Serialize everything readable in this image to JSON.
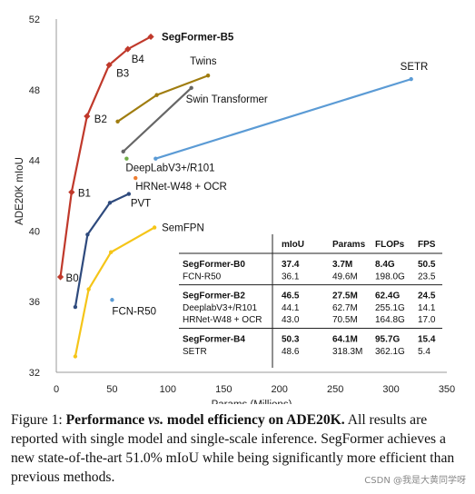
{
  "chart_data": {
    "type": "line",
    "xlabel": "Params (Millions)",
    "ylabel": "ADE20K mIoU",
    "xlim": [
      0,
      350
    ],
    "ylim": [
      32,
      52
    ],
    "xticks": [
      "0",
      "50",
      "100",
      "150",
      "200",
      "250",
      "300",
      "350"
    ],
    "yticks": [
      "32",
      "36",
      "40",
      "44",
      "48",
      "52"
    ],
    "grid": false,
    "series": [
      {
        "name": "SegFormer-B5",
        "color": "#c0392b",
        "marker": "diamond",
        "points": [
          {
            "x": 3.7,
            "y": 37.4,
            "label": "B0"
          },
          {
            "x": 13.7,
            "y": 42.2,
            "label": "B1"
          },
          {
            "x": 27.5,
            "y": 46.5,
            "label": "B2"
          },
          {
            "x": 47.3,
            "y": 49.4,
            "label": "B3"
          },
          {
            "x": 64.1,
            "y": 50.3,
            "label": "B4"
          },
          {
            "x": 84.7,
            "y": 51.0,
            "label": ""
          }
        ]
      },
      {
        "name": "Twins",
        "color": "#a07d10",
        "marker": "dot",
        "points": [
          {
            "x": 55,
            "y": 46.2
          },
          {
            "x": 90,
            "y": 47.7
          },
          {
            "x": 136,
            "y": 48.8
          }
        ]
      },
      {
        "name": "Swin Transformer",
        "color": "#666666",
        "marker": "dot",
        "points": [
          {
            "x": 60,
            "y": 44.5
          },
          {
            "x": 121,
            "y": 48.1
          }
        ]
      },
      {
        "name": "SETR",
        "color": "#5b9bd5",
        "marker": "dot",
        "points": [
          {
            "x": 89,
            "y": 44.1
          },
          {
            "x": 318,
            "y": 48.6
          }
        ]
      },
      {
        "name": "DeepLabV3+/R101",
        "color": "#70ad47",
        "marker": "dot",
        "points": [
          {
            "x": 63,
            "y": 44.1
          }
        ]
      },
      {
        "name": "HRNet-W48 + OCR",
        "color": "#ed7d31",
        "marker": "dot",
        "points": [
          {
            "x": 71,
            "y": 43.0
          }
        ]
      },
      {
        "name": "PVT",
        "color": "#2e4a7d",
        "marker": "dot",
        "points": [
          {
            "x": 17,
            "y": 35.7
          },
          {
            "x": 28,
            "y": 39.8
          },
          {
            "x": 48,
            "y": 41.6
          },
          {
            "x": 65,
            "y": 42.1
          }
        ]
      },
      {
        "name": "SemFPN",
        "color": "#f5c518",
        "marker": "dot",
        "points": [
          {
            "x": 17,
            "y": 32.9
          },
          {
            "x": 29,
            "y": 36.7
          },
          {
            "x": 49,
            "y": 38.8
          },
          {
            "x": 88,
            "y": 40.2
          }
        ]
      },
      {
        "name": "FCN-R50",
        "color": "#5b9bd5",
        "marker": "dot",
        "points": [
          {
            "x": 50,
            "y": 36.1
          }
        ]
      }
    ],
    "table": {
      "headers": [
        "mIoU",
        "Params",
        "FLOPs",
        "FPS"
      ],
      "groups": [
        {
          "rows": [
            {
              "name": "SegFormer-B0",
              "bold": true,
              "cells": [
                "37.4",
                "3.7M",
                "8.4G",
                "50.5"
              ]
            },
            {
              "name": "FCN-R50",
              "bold": false,
              "cells": [
                "36.1",
                "49.6M",
                "198.0G",
                "23.5"
              ]
            }
          ]
        },
        {
          "rows": [
            {
              "name": "SegFormer-B2",
              "bold": true,
              "cells": [
                "46.5",
                "27.5M",
                "62.4G",
                "24.5"
              ]
            },
            {
              "name": "DeeplabV3+/R101",
              "bold": false,
              "cells": [
                "44.1",
                "62.7M",
                "255.1G",
                "14.1"
              ]
            },
            {
              "name": "HRNet-W48 + OCR",
              "bold": false,
              "cells": [
                "43.0",
                "70.5M",
                "164.8G",
                "17.0"
              ]
            }
          ]
        },
        {
          "rows": [
            {
              "name": "SegFormer-B4",
              "bold": true,
              "cells": [
                "50.3",
                "64.1M",
                "95.7G",
                "15.4"
              ]
            },
            {
              "name": "SETR",
              "bold": false,
              "cells": [
                "48.6",
                "318.3M",
                "362.1G",
                "5.4"
              ]
            }
          ]
        }
      ]
    }
  },
  "caption": {
    "prefix": "Figure 1: ",
    "bold_a": "Performance ",
    "vs": "vs.",
    "bold_b": " model efficiency on ADE20K.",
    "rest": " All results are reported with single model and single-scale inference. SegFormer achieves a new state-of-the-art 51.0% mIoU while being significantly more efficient than previous methods."
  },
  "watermark": "CSDN @我是大黄同学呀"
}
